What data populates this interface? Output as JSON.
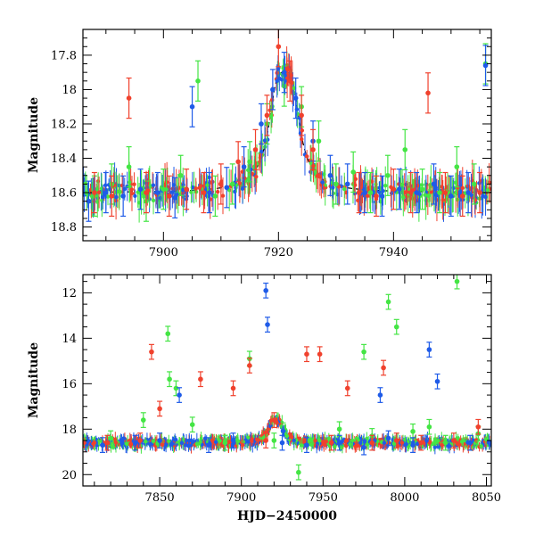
{
  "chart_data": [
    {
      "type": "scatter",
      "title": "",
      "xlabel": "",
      "ylabel": "Magnitude",
      "xlim": [
        7886,
        7957
      ],
      "ylim": [
        18.88,
        17.65
      ],
      "y_inverted": true,
      "xticks": [
        7900,
        7920,
        7940
      ],
      "yticks": [
        17.8,
        18.0,
        18.2,
        18.4,
        18.6,
        18.8
      ],
      "ytick_labels": [
        "17.8",
        "18",
        "18.2",
        "18.4",
        "18.6",
        "18.8"
      ],
      "grid": false,
      "legend": "none",
      "model_curve": {
        "color": "#000000",
        "style": "dashed",
        "baseline": 18.6,
        "peak_x": 7921.0,
        "peak_y": 17.9
      },
      "series": [
        {
          "color": "#44e544",
          "x": [
            7888,
            7891,
            7894,
            7897,
            7900,
            7903,
            7906,
            7909,
            7912,
            7915,
            7918,
            7921,
            7924,
            7927,
            7930,
            7933,
            7936,
            7939,
            7942,
            7945,
            7948,
            7951,
            7954,
            7956
          ],
          "y": [
            18.62,
            18.55,
            18.45,
            18.65,
            18.58,
            18.5,
            17.95,
            18.62,
            18.55,
            18.42,
            18.2,
            17.98,
            18.1,
            18.3,
            18.55,
            18.48,
            18.6,
            18.5,
            18.35,
            18.58,
            18.6,
            18.45,
            18.55,
            17.85
          ]
        },
        {
          "color": "#1f5be8",
          "x": [
            7887,
            7890,
            7893,
            7896,
            7899,
            7902,
            7905,
            7908,
            7911,
            7914,
            7917,
            7919,
            7921,
            7923,
            7926,
            7929,
            7932,
            7935,
            7938,
            7941,
            7944,
            7947,
            7950,
            7953,
            7956
          ],
          "y": [
            18.65,
            18.6,
            18.62,
            18.58,
            18.6,
            18.63,
            18.1,
            18.6,
            18.57,
            18.45,
            18.2,
            18.0,
            17.9,
            18.05,
            18.3,
            18.5,
            18.55,
            18.6,
            18.62,
            18.58,
            18.6,
            18.55,
            18.62,
            18.6,
            17.86
          ]
        },
        {
          "color": "#f0412d",
          "x": [
            7888,
            7891,
            7894,
            7897,
            7901,
            7904,
            7907,
            7910,
            7913,
            7916,
            7918,
            7920,
            7922,
            7924,
            7926,
            7934,
            7937,
            7940,
            7943,
            7946,
            7949,
            7952,
            7955
          ],
          "y": [
            18.6,
            18.62,
            18.05,
            18.6,
            18.62,
            18.58,
            18.6,
            18.55,
            18.42,
            18.35,
            18.15,
            17.75,
            17.95,
            18.15,
            18.35,
            18.6,
            18.62,
            18.58,
            18.6,
            18.02,
            18.6,
            18.62,
            18.6
          ]
        }
      ]
    },
    {
      "type": "scatter",
      "title": "",
      "xlabel": "HJD−2450000",
      "ylabel": "Magnitude",
      "xlim": [
        7803,
        8053
      ],
      "ylim": [
        20.5,
        11.2
      ],
      "y_inverted": true,
      "xticks": [
        7850,
        7900,
        7950,
        8000,
        8050
      ],
      "yticks": [
        12,
        14,
        16,
        18,
        20
      ],
      "grid": false,
      "legend": "none",
      "series": [
        {
          "color": "#44e544",
          "x": [
            7820,
            7840,
            7855,
            7856,
            7860,
            7870,
            7890,
            7905,
            7920,
            7935,
            7960,
            7975,
            7980,
            7990,
            7995,
            8005,
            8015,
            8025,
            8032,
            8045
          ],
          "y": [
            18.4,
            17.6,
            13.8,
            15.8,
            16.2,
            17.8,
            18.6,
            14.9,
            18.5,
            19.9,
            18.0,
            14.6,
            18.3,
            12.4,
            13.5,
            18.1,
            17.9,
            18.6,
            11.5,
            18.2
          ]
        },
        {
          "color": "#1f5be8",
          "x": [
            7815,
            7835,
            7850,
            7862,
            7880,
            7895,
            7915,
            7916,
            7925,
            7940,
            7960,
            7975,
            7985,
            7990,
            8005,
            8015,
            8020,
            8040
          ],
          "y": [
            18.7,
            18.6,
            18.5,
            16.5,
            18.7,
            18.5,
            11.9,
            13.4,
            18.6,
            18.7,
            18.6,
            18.8,
            16.5,
            18.4,
            18.7,
            14.5,
            15.9,
            18.6
          ]
        },
        {
          "color": "#f0412d",
          "x": [
            7818,
            7838,
            7845,
            7850,
            7875,
            7895,
            7905,
            7915,
            7920,
            7940,
            7948,
            7955,
            7965,
            7980,
            7987,
            7995,
            8010,
            8030,
            8045
          ],
          "y": [
            18.6,
            18.5,
            14.6,
            17.1,
            15.8,
            16.2,
            15.2,
            18.5,
            17.6,
            14.7,
            14.7,
            18.6,
            16.2,
            18.6,
            15.3,
            18.5,
            18.6,
            18.5,
            17.9
          ]
        }
      ]
    }
  ]
}
